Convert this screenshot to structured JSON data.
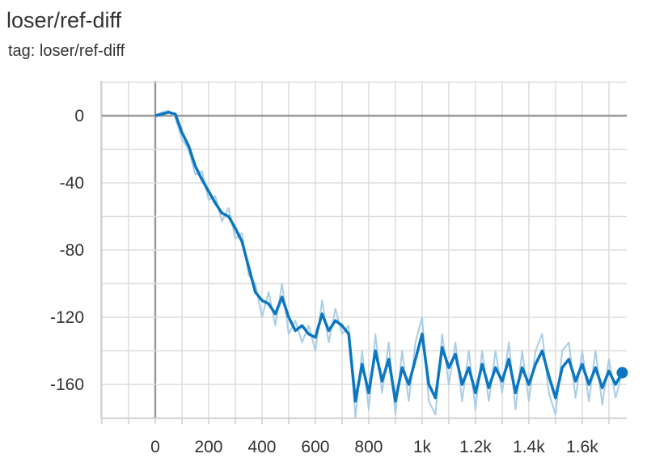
{
  "chart_data": {
    "type": "line",
    "title": "loser/ref-diff",
    "subtitle": "tag: loser/ref-diff",
    "x": [
      0,
      25,
      50,
      75,
      100,
      125,
      150,
      175,
      200,
      225,
      250,
      275,
      300,
      325,
      350,
      375,
      400,
      425,
      450,
      475,
      500,
      525,
      550,
      575,
      600,
      625,
      650,
      675,
      700,
      725,
      750,
      775,
      800,
      825,
      850,
      875,
      900,
      925,
      950,
      975,
      1000,
      1025,
      1050,
      1075,
      1100,
      1125,
      1150,
      1175,
      1200,
      1225,
      1250,
      1275,
      1300,
      1325,
      1350,
      1375,
      1400,
      1425,
      1450,
      1475,
      1500,
      1525,
      1550,
      1575,
      1600,
      1625,
      1650,
      1675,
      1700,
      1725,
      1750
    ],
    "series": [
      {
        "color": "#a9cde8",
        "values": [
          0,
          2,
          3,
          -1,
          -14,
          -20,
          -35,
          -33,
          -50,
          -48,
          -63,
          -55,
          -73,
          -70,
          -95,
          -100,
          -120,
          -105,
          -125,
          -100,
          -130,
          -122,
          -135,
          -125,
          -140,
          -110,
          -135,
          -115,
          -130,
          -125,
          -180,
          -140,
          -175,
          -130,
          -165,
          -135,
          -178,
          -140,
          -170,
          -135,
          -120,
          -170,
          -178,
          -130,
          -160,
          -135,
          -170,
          -140,
          -175,
          -140,
          -170,
          -140,
          -165,
          -135,
          -175,
          -140,
          -170,
          -140,
          -130,
          -165,
          -178,
          -140,
          -135,
          -168,
          -140,
          -170,
          -140,
          -172,
          -145,
          -168,
          -153
        ]
      },
      {
        "color": "#0b77c1",
        "values": [
          0,
          1,
          2,
          1,
          -10,
          -18,
          -30,
          -38,
          -45,
          -52,
          -58,
          -60,
          -67,
          -75,
          -90,
          -105,
          -110,
          -112,
          -118,
          -108,
          -120,
          -128,
          -125,
          -130,
          -132,
          -118,
          -128,
          -122,
          -125,
          -130,
          -170,
          -148,
          -165,
          -140,
          -158,
          -145,
          -170,
          -150,
          -160,
          -145,
          -130,
          -160,
          -168,
          -138,
          -150,
          -142,
          -160,
          -150,
          -165,
          -148,
          -162,
          -150,
          -158,
          -145,
          -165,
          -150,
          -160,
          -148,
          -140,
          -155,
          -168,
          -150,
          -145,
          -158,
          -148,
          -160,
          -150,
          -162,
          -152,
          -160,
          -153
        ]
      }
    ],
    "xlim": [
      -203,
      1767
    ],
    "ylim": [
      -180.2,
      20.7
    ],
    "xticks": [
      0,
      200,
      400,
      600,
      800,
      {
        "value": 1000,
        "label": "1k"
      },
      {
        "value": 1200,
        "label": "1.2k"
      },
      {
        "value": 1400,
        "label": "1.4k"
      },
      {
        "value": 1600,
        "label": "1.6k"
      }
    ],
    "yticks": [
      0,
      -40,
      -80,
      -120,
      -160
    ],
    "xgrid": [
      -200,
      -100,
      0,
      100,
      200,
      300,
      400,
      500,
      600,
      700,
      800,
      900,
      1000,
      1100,
      1200,
      1300,
      1400,
      1500,
      1600,
      1700
    ],
    "ygrid": [
      -180,
      -160,
      -140,
      -120,
      -100,
      -80,
      -60,
      -40,
      -20,
      0,
      20
    ],
    "grid": true
  }
}
